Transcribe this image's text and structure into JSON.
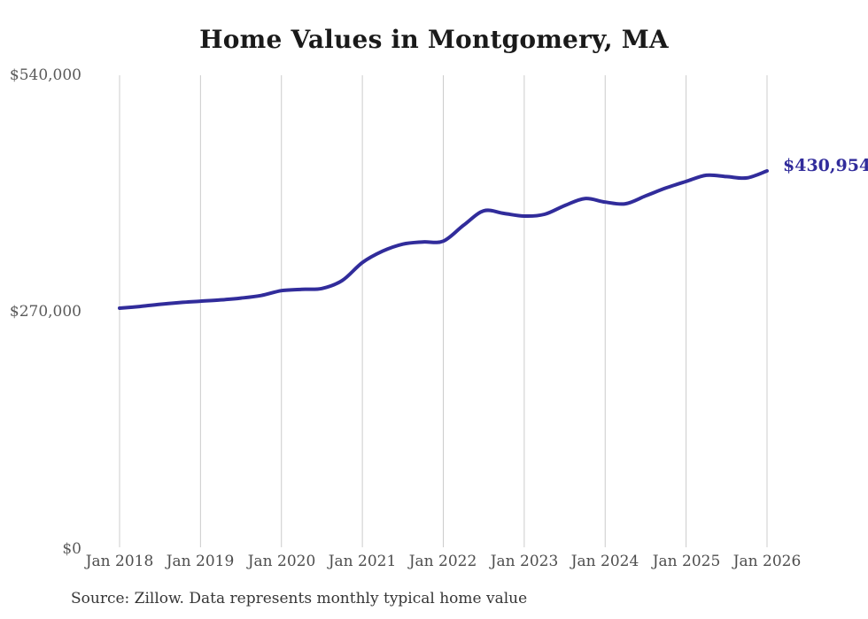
{
  "chart_data": {
    "type": "line",
    "title": "Home Values in Montgomery, MA",
    "source": "Source: Zillow. Data represents monthly typical home value",
    "end_label": "$430,954",
    "current_value": 430954,
    "line_color": "#312c9b",
    "grid_color": "#cccccc",
    "label_color": "#5a5a5a",
    "grid": "vertical-only",
    "legend_position": "none",
    "xlabel": "",
    "ylabel": "",
    "xlim": [
      2018.0,
      2026.0
    ],
    "ylim": [
      0,
      540000
    ],
    "yticks": [
      {
        "value": 540000,
        "label": "$540,000"
      },
      {
        "value": 270000,
        "label": "$270,000"
      },
      {
        "value": 0,
        "label": "$0"
      }
    ],
    "xticks": [
      {
        "value": 2018,
        "label": "Jan 2018"
      },
      {
        "value": 2019,
        "label": "Jan 2019"
      },
      {
        "value": 2020,
        "label": "Jan 2020"
      },
      {
        "value": 2021,
        "label": "Jan 2021"
      },
      {
        "value": 2022,
        "label": "Jan 2022"
      },
      {
        "value": 2023,
        "label": "Jan 2023"
      },
      {
        "value": 2024,
        "label": "Jan 2024"
      },
      {
        "value": 2025,
        "label": "Jan 2025"
      },
      {
        "value": 2026,
        "label": "Jan 2026"
      }
    ],
    "series": [
      {
        "name": "Typical home value",
        "points": [
          [
            "2018-01",
            274500
          ],
          [
            "2018-04",
            276500
          ],
          [
            "2018-07",
            279000
          ],
          [
            "2018-10",
            281000
          ],
          [
            "2019-01",
            282500
          ],
          [
            "2019-04",
            284000
          ],
          [
            "2019-07",
            286000
          ],
          [
            "2019-10",
            289000
          ],
          [
            "2020-01",
            294500
          ],
          [
            "2020-04",
            296000
          ],
          [
            "2020-07",
            297000
          ],
          [
            "2020-10",
            306000
          ],
          [
            "2021-01",
            326500
          ],
          [
            "2021-04",
            339500
          ],
          [
            "2021-07",
            347500
          ],
          [
            "2021-10",
            350000
          ],
          [
            "2022-01",
            351000
          ],
          [
            "2022-04",
            369000
          ],
          [
            "2022-07",
            385500
          ],
          [
            "2022-10",
            382500
          ],
          [
            "2023-01",
            379500
          ],
          [
            "2023-04",
            381500
          ],
          [
            "2023-07",
            391500
          ],
          [
            "2023-10",
            399500
          ],
          [
            "2024-01",
            395500
          ],
          [
            "2024-04",
            393500
          ],
          [
            "2024-07",
            402500
          ],
          [
            "2024-10",
            411500
          ],
          [
            "2025-01",
            419000
          ],
          [
            "2025-04",
            426000
          ],
          [
            "2025-07",
            424500
          ],
          [
            "2025-10",
            423000
          ],
          [
            "2026-01",
            430954
          ]
        ]
      }
    ]
  }
}
